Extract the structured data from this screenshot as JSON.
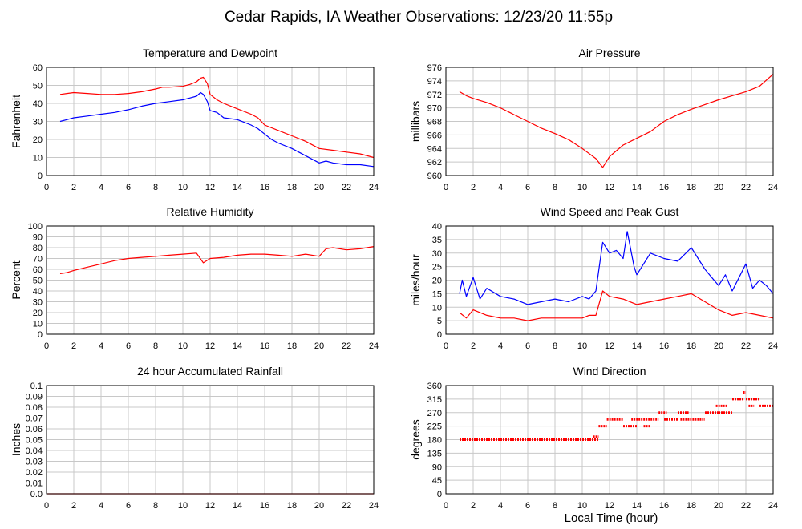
{
  "figure": {
    "title": "Cedar Rapids, IA Weather Observations: 12/23/20 11:55p",
    "xlabel": "Local Time (hour)"
  },
  "chart_data": [
    {
      "id": "temp",
      "type": "line",
      "title": "Temperature and Dewpoint",
      "ylabel": "Fahrenheit",
      "xlim": [
        0,
        24
      ],
      "ylim": [
        0,
        60
      ],
      "xticks": [
        0,
        2,
        4,
        6,
        8,
        10,
        12,
        14,
        16,
        18,
        20,
        22,
        24
      ],
      "yticks": [
        0,
        10,
        20,
        30,
        40,
        50,
        60
      ],
      "ytick_labels": [
        "0",
        "10",
        "20",
        "30",
        "40",
        "50",
        "60"
      ],
      "grid": true,
      "series": [
        {
          "color": "#ff0000",
          "x": [
            1,
            1.5,
            2,
            3,
            4,
            5,
            6,
            7,
            8,
            8.5,
            9,
            10,
            10.5,
            11,
            11.3,
            11.5,
            11.8,
            12,
            12.5,
            13,
            14,
            15,
            15.5,
            16,
            17,
            18,
            19,
            20,
            21,
            22,
            23,
            24
          ],
          "y": [
            45,
            45.5,
            46,
            45.5,
            45,
            45,
            45.5,
            46.5,
            48,
            49,
            49,
            49.5,
            50.5,
            52,
            54,
            54.5,
            51,
            45,
            42,
            40,
            37,
            34,
            32,
            28,
            25,
            22,
            19,
            15,
            14,
            13,
            12,
            10
          ]
        },
        {
          "color": "#0000ff",
          "x": [
            1,
            1.5,
            2,
            3,
            4,
            5,
            6,
            7,
            8,
            9,
            10,
            10.5,
            11,
            11.3,
            11.5,
            11.8,
            12,
            12.5,
            13,
            14,
            15,
            15.5,
            16,
            16.5,
            17,
            18,
            19,
            20,
            20.5,
            21,
            22,
            23,
            24
          ],
          "y": [
            30,
            31,
            32,
            33,
            34,
            35,
            36.5,
            38.5,
            40,
            41,
            42,
            43,
            44,
            46,
            45,
            41,
            36,
            35,
            32,
            31,
            28,
            26,
            23,
            20,
            18,
            15,
            11,
            7,
            8,
            7,
            6,
            6,
            5
          ]
        }
      ]
    },
    {
      "id": "pressure",
      "type": "line",
      "title": "Air Pressure",
      "ylabel": "millibars",
      "xlim": [
        0,
        24
      ],
      "ylim": [
        960,
        976
      ],
      "xticks": [
        0,
        2,
        4,
        6,
        8,
        10,
        12,
        14,
        16,
        18,
        20,
        22,
        24
      ],
      "yticks": [
        960,
        962,
        964,
        966,
        968,
        970,
        972,
        974,
        976
      ],
      "ytick_labels": [
        "960",
        "962",
        "964",
        "966",
        "968",
        "970",
        "972",
        "974",
        "976"
      ],
      "grid": true,
      "series": [
        {
          "color": "#ff0000",
          "x": [
            1,
            1.5,
            2,
            3,
            4,
            5,
            6,
            7,
            8,
            9,
            10,
            11,
            11.5,
            12,
            13,
            14,
            15,
            16,
            17,
            18,
            19,
            20,
            21,
            22,
            23,
            24
          ],
          "y": [
            972.4,
            971.8,
            971.4,
            970.8,
            970,
            969,
            968,
            967,
            966.2,
            965.3,
            964,
            962.5,
            961.2,
            962.8,
            964.5,
            965.5,
            966.5,
            968,
            969,
            969.8,
            970.5,
            971.2,
            971.8,
            972.4,
            973.2,
            975
          ]
        }
      ]
    },
    {
      "id": "rh",
      "type": "line",
      "title": "Relative Humidity",
      "ylabel": "Percent",
      "xlim": [
        0,
        24
      ],
      "ylim": [
        0,
        100
      ],
      "xticks": [
        0,
        2,
        4,
        6,
        8,
        10,
        12,
        14,
        16,
        18,
        20,
        22,
        24
      ],
      "yticks": [
        0,
        10,
        20,
        30,
        40,
        50,
        60,
        70,
        80,
        90,
        100
      ],
      "ytick_labels": [
        "0",
        "10",
        "20",
        "30",
        "40",
        "50",
        "60",
        "70",
        "80",
        "90",
        "100"
      ],
      "grid": true,
      "series": [
        {
          "color": "#ff0000",
          "x": [
            1,
            1.5,
            2,
            3,
            4,
            5,
            6,
            7,
            8,
            9,
            10,
            11,
            11.5,
            12,
            13,
            14,
            15,
            16,
            17,
            18,
            19,
            20,
            20.5,
            21,
            22,
            23,
            24
          ],
          "y": [
            56,
            57,
            59,
            62,
            65,
            68,
            70,
            71,
            72,
            73,
            74,
            75,
            66,
            70,
            71,
            73,
            74,
            74,
            73,
            72,
            74,
            72,
            79,
            80,
            78,
            79,
            81
          ]
        }
      ]
    },
    {
      "id": "wind",
      "type": "line",
      "title": "Wind Speed and Peak Gust",
      "ylabel": "miles/hour",
      "xlim": [
        0,
        24
      ],
      "ylim": [
        0,
        40
      ],
      "xticks": [
        0,
        2,
        4,
        6,
        8,
        10,
        12,
        14,
        16,
        18,
        20,
        22,
        24
      ],
      "yticks": [
        0,
        5,
        10,
        15,
        20,
        25,
        30,
        35,
        40
      ],
      "ytick_labels": [
        "0",
        "5",
        "10",
        "15",
        "20",
        "25",
        "30",
        "35",
        "40"
      ],
      "grid": true,
      "series": [
        {
          "color": "#0000ff",
          "x": [
            1,
            1.2,
            1.5,
            2,
            2.5,
            3,
            4,
            5,
            6,
            7,
            8,
            9,
            10,
            10.5,
            11,
            11.5,
            12,
            12.5,
            13,
            13.3,
            13.8,
            14,
            15,
            16,
            17,
            18,
            19,
            20,
            20.5,
            21,
            22,
            22.5,
            23,
            23.5,
            24
          ],
          "y": [
            15,
            20,
            14,
            21,
            13,
            17,
            14,
            13,
            11,
            12,
            13,
            12,
            14,
            13,
            16,
            34,
            30,
            31,
            28,
            38,
            25,
            22,
            30,
            28,
            27,
            32,
            24,
            18,
            22,
            16,
            26,
            17,
            20,
            18,
            15
          ]
        },
        {
          "color": "#ff0000",
          "x": [
            1,
            1.5,
            2,
            3,
            4,
            5,
            6,
            7,
            8,
            9,
            10,
            10.5,
            11,
            11.5,
            12,
            13,
            14,
            15,
            16,
            17,
            18,
            19,
            20,
            21,
            22,
            23,
            24
          ],
          "y": [
            8,
            6,
            9,
            7,
            6,
            6,
            5,
            6,
            6,
            6,
            6,
            7,
            7,
            16,
            14,
            13,
            11,
            12,
            13,
            14,
            15,
            12,
            9,
            7,
            8,
            7,
            6
          ]
        }
      ]
    },
    {
      "id": "rain",
      "type": "line",
      "title": "24 hour Accumulated Rainfall",
      "ylabel": "Inches",
      "xlim": [
        0,
        24
      ],
      "ylim": [
        0,
        0.1
      ],
      "xticks": [
        0,
        2,
        4,
        6,
        8,
        10,
        12,
        14,
        16,
        18,
        20,
        22,
        24
      ],
      "yticks": [
        0,
        0.01,
        0.02,
        0.03,
        0.04,
        0.05,
        0.06,
        0.07,
        0.08,
        0.09,
        0.1
      ],
      "ytick_labels": [
        "0.0",
        "0.01",
        "0.02",
        "0.03",
        "0.04",
        "0.05",
        "0.06",
        "0.07",
        "0.08",
        "0.09",
        "0.1"
      ],
      "grid": true,
      "series": [
        {
          "color": "#ff0000",
          "x": [
            0,
            24
          ],
          "y": [
            0,
            0
          ]
        }
      ]
    },
    {
      "id": "wdir",
      "type": "scatter",
      "title": "Wind Direction",
      "ylabel": "degrees",
      "xlim": [
        0,
        24
      ],
      "ylim": [
        0,
        360
      ],
      "xticks": [
        0,
        2,
        4,
        6,
        8,
        10,
        12,
        14,
        16,
        18,
        20,
        22,
        24
      ],
      "yticks": [
        0,
        45,
        90,
        135,
        180,
        225,
        270,
        315,
        360
      ],
      "ytick_labels": [
        "0",
        "45",
        "90",
        "135",
        "180",
        "225",
        "270",
        "315",
        "360"
      ],
      "grid": true,
      "series": [
        {
          "color": "#ff0000",
          "segments": [
            {
              "x0": 1.0,
              "x1": 11.2,
              "y": 180
            },
            {
              "x0": 10.8,
              "x1": 11.2,
              "y": 190
            },
            {
              "x0": 11.2,
              "x1": 11.8,
              "y": 225
            },
            {
              "x0": 11.8,
              "x1": 13.0,
              "y": 247.5
            },
            {
              "x0": 13.0,
              "x1": 14.0,
              "y": 225
            },
            {
              "x0": 13.6,
              "x1": 15.6,
              "y": 247.5
            },
            {
              "x0": 14.5,
              "x1": 15.0,
              "y": 225
            },
            {
              "x0": 15.6,
              "x1": 16.2,
              "y": 270
            },
            {
              "x0": 16.0,
              "x1": 17.0,
              "y": 247.5
            },
            {
              "x0": 17.0,
              "x1": 17.8,
              "y": 270
            },
            {
              "x0": 17.2,
              "x1": 19.0,
              "y": 247.5
            },
            {
              "x0": 19.0,
              "x1": 20.0,
              "y": 270
            },
            {
              "x0": 19.8,
              "x1": 20.6,
              "y": 292.5
            },
            {
              "x0": 20.0,
              "x1": 21.0,
              "y": 270
            },
            {
              "x0": 21.0,
              "x1": 21.8,
              "y": 315
            },
            {
              "x0": 21.8,
              "x1": 22.0,
              "y": 337.5
            },
            {
              "x0": 22.0,
              "x1": 23.0,
              "y": 315
            },
            {
              "x0": 22.2,
              "x1": 22.6,
              "y": 292.5
            },
            {
              "x0": 23.0,
              "x1": 24.0,
              "y": 292.5
            }
          ]
        }
      ]
    }
  ]
}
